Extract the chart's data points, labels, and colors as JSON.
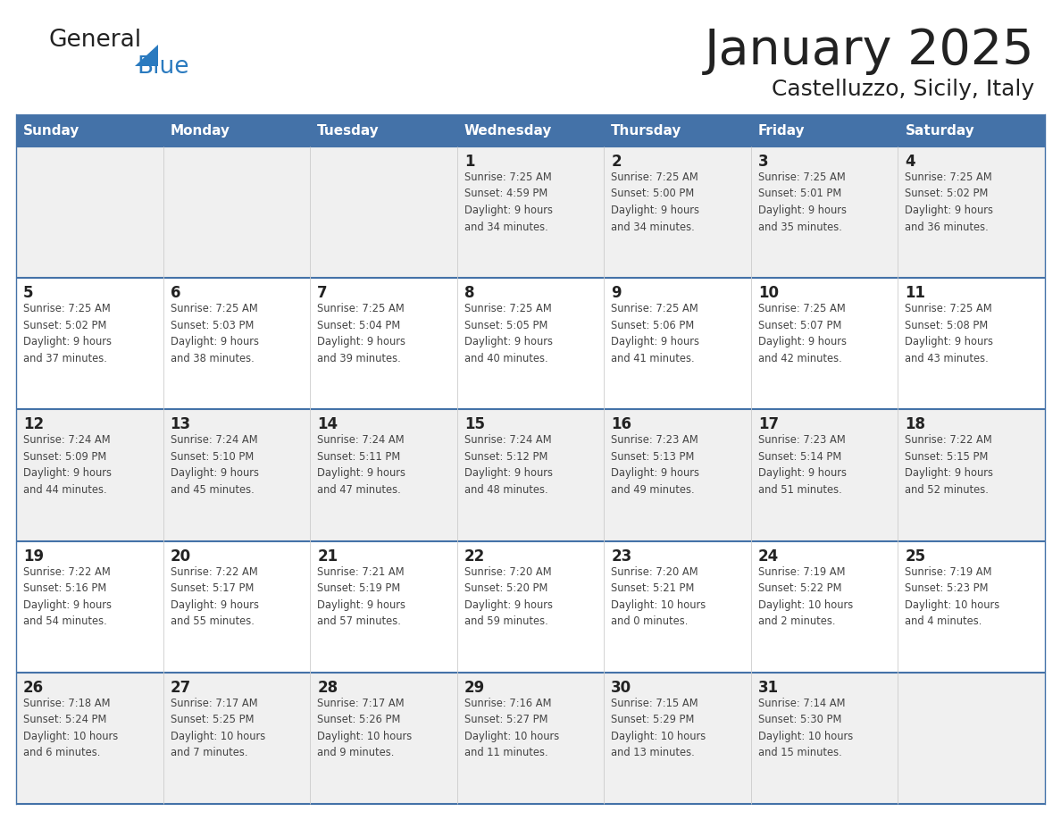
{
  "title": "January 2025",
  "subtitle": "Castelluzzo, Sicily, Italy",
  "header_bg": "#4472a8",
  "header_text_color": "#ffffff",
  "day_names": [
    "Sunday",
    "Monday",
    "Tuesday",
    "Wednesday",
    "Thursday",
    "Friday",
    "Saturday"
  ],
  "row_bg_even": "#f0f0f0",
  "row_bg_odd": "#ffffff",
  "separator_color": "#4472a8",
  "date_text_color": "#222222",
  "info_text_color": "#444444",
  "logo_general_color": "#222222",
  "logo_blue_color": "#2a7abf",
  "triangle_color": "#2a7abf",
  "calendar_data": [
    [
      {
        "day": "",
        "info": ""
      },
      {
        "day": "",
        "info": ""
      },
      {
        "day": "",
        "info": ""
      },
      {
        "day": "1",
        "info": "Sunrise: 7:25 AM\nSunset: 4:59 PM\nDaylight: 9 hours\nand 34 minutes."
      },
      {
        "day": "2",
        "info": "Sunrise: 7:25 AM\nSunset: 5:00 PM\nDaylight: 9 hours\nand 34 minutes."
      },
      {
        "day": "3",
        "info": "Sunrise: 7:25 AM\nSunset: 5:01 PM\nDaylight: 9 hours\nand 35 minutes."
      },
      {
        "day": "4",
        "info": "Sunrise: 7:25 AM\nSunset: 5:02 PM\nDaylight: 9 hours\nand 36 minutes."
      }
    ],
    [
      {
        "day": "5",
        "info": "Sunrise: 7:25 AM\nSunset: 5:02 PM\nDaylight: 9 hours\nand 37 minutes."
      },
      {
        "day": "6",
        "info": "Sunrise: 7:25 AM\nSunset: 5:03 PM\nDaylight: 9 hours\nand 38 minutes."
      },
      {
        "day": "7",
        "info": "Sunrise: 7:25 AM\nSunset: 5:04 PM\nDaylight: 9 hours\nand 39 minutes."
      },
      {
        "day": "8",
        "info": "Sunrise: 7:25 AM\nSunset: 5:05 PM\nDaylight: 9 hours\nand 40 minutes."
      },
      {
        "day": "9",
        "info": "Sunrise: 7:25 AM\nSunset: 5:06 PM\nDaylight: 9 hours\nand 41 minutes."
      },
      {
        "day": "10",
        "info": "Sunrise: 7:25 AM\nSunset: 5:07 PM\nDaylight: 9 hours\nand 42 minutes."
      },
      {
        "day": "11",
        "info": "Sunrise: 7:25 AM\nSunset: 5:08 PM\nDaylight: 9 hours\nand 43 minutes."
      }
    ],
    [
      {
        "day": "12",
        "info": "Sunrise: 7:24 AM\nSunset: 5:09 PM\nDaylight: 9 hours\nand 44 minutes."
      },
      {
        "day": "13",
        "info": "Sunrise: 7:24 AM\nSunset: 5:10 PM\nDaylight: 9 hours\nand 45 minutes."
      },
      {
        "day": "14",
        "info": "Sunrise: 7:24 AM\nSunset: 5:11 PM\nDaylight: 9 hours\nand 47 minutes."
      },
      {
        "day": "15",
        "info": "Sunrise: 7:24 AM\nSunset: 5:12 PM\nDaylight: 9 hours\nand 48 minutes."
      },
      {
        "day": "16",
        "info": "Sunrise: 7:23 AM\nSunset: 5:13 PM\nDaylight: 9 hours\nand 49 minutes."
      },
      {
        "day": "17",
        "info": "Sunrise: 7:23 AM\nSunset: 5:14 PM\nDaylight: 9 hours\nand 51 minutes."
      },
      {
        "day": "18",
        "info": "Sunrise: 7:22 AM\nSunset: 5:15 PM\nDaylight: 9 hours\nand 52 minutes."
      }
    ],
    [
      {
        "day": "19",
        "info": "Sunrise: 7:22 AM\nSunset: 5:16 PM\nDaylight: 9 hours\nand 54 minutes."
      },
      {
        "day": "20",
        "info": "Sunrise: 7:22 AM\nSunset: 5:17 PM\nDaylight: 9 hours\nand 55 minutes."
      },
      {
        "day": "21",
        "info": "Sunrise: 7:21 AM\nSunset: 5:19 PM\nDaylight: 9 hours\nand 57 minutes."
      },
      {
        "day": "22",
        "info": "Sunrise: 7:20 AM\nSunset: 5:20 PM\nDaylight: 9 hours\nand 59 minutes."
      },
      {
        "day": "23",
        "info": "Sunrise: 7:20 AM\nSunset: 5:21 PM\nDaylight: 10 hours\nand 0 minutes."
      },
      {
        "day": "24",
        "info": "Sunrise: 7:19 AM\nSunset: 5:22 PM\nDaylight: 10 hours\nand 2 minutes."
      },
      {
        "day": "25",
        "info": "Sunrise: 7:19 AM\nSunset: 5:23 PM\nDaylight: 10 hours\nand 4 minutes."
      }
    ],
    [
      {
        "day": "26",
        "info": "Sunrise: 7:18 AM\nSunset: 5:24 PM\nDaylight: 10 hours\nand 6 minutes."
      },
      {
        "day": "27",
        "info": "Sunrise: 7:17 AM\nSunset: 5:25 PM\nDaylight: 10 hours\nand 7 minutes."
      },
      {
        "day": "28",
        "info": "Sunrise: 7:17 AM\nSunset: 5:26 PM\nDaylight: 10 hours\nand 9 minutes."
      },
      {
        "day": "29",
        "info": "Sunrise: 7:16 AM\nSunset: 5:27 PM\nDaylight: 10 hours\nand 11 minutes."
      },
      {
        "day": "30",
        "info": "Sunrise: 7:15 AM\nSunset: 5:29 PM\nDaylight: 10 hours\nand 13 minutes."
      },
      {
        "day": "31",
        "info": "Sunrise: 7:14 AM\nSunset: 5:30 PM\nDaylight: 10 hours\nand 15 minutes."
      },
      {
        "day": "",
        "info": ""
      }
    ]
  ],
  "fig_width": 11.88,
  "fig_height": 9.18,
  "dpi": 100
}
